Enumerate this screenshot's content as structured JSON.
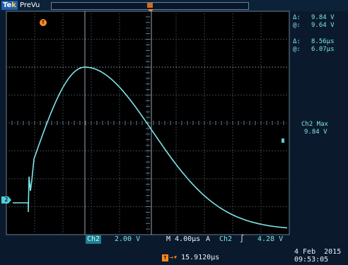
{
  "top_bar": {
    "brand_prefix": "Te",
    "brand_suffix": "k",
    "status": "PreVu"
  },
  "markers": {
    "trigger": "T",
    "channel": "2"
  },
  "cursor_readout": {
    "amplitude": {
      "delta_symbol": "Δ:",
      "delta_value": "9.84 V",
      "at_symbol": "@:",
      "at_value": "9.64 V"
    },
    "time": {
      "delta_symbol": "Δ:",
      "delta_value": "8.56μs",
      "at_symbol": "@:",
      "at_value": "6.07μs"
    }
  },
  "measurement": {
    "label": "Ch2 Max",
    "value": "9.84 V"
  },
  "bottom_bar": {
    "channel_badge": "Ch2",
    "volts_per_div": "2.00 V",
    "timebase": "M 4.00μs",
    "trigger_mode": "A",
    "trigger_source": "Ch2",
    "trigger_slope": "∫",
    "trigger_level": "4.28 V",
    "delay_badge": "T",
    "delay_arrow": "→▾",
    "delay_value": "15.9120μs",
    "date": "4 Feb  2015",
    "time": "09:53:05"
  },
  "colors": {
    "trace": "#7fe3e8",
    "grid": "#6a7f95",
    "background": "#000000",
    "trigger": "#ff8a1f"
  },
  "icons": {
    "trigger_marker": "trigger-position-marker-icon",
    "channel_marker": "channel-2-ground-marker-icon",
    "record_window": "record-view-window-icon",
    "slope": "rising-edge-slope-icon"
  }
}
